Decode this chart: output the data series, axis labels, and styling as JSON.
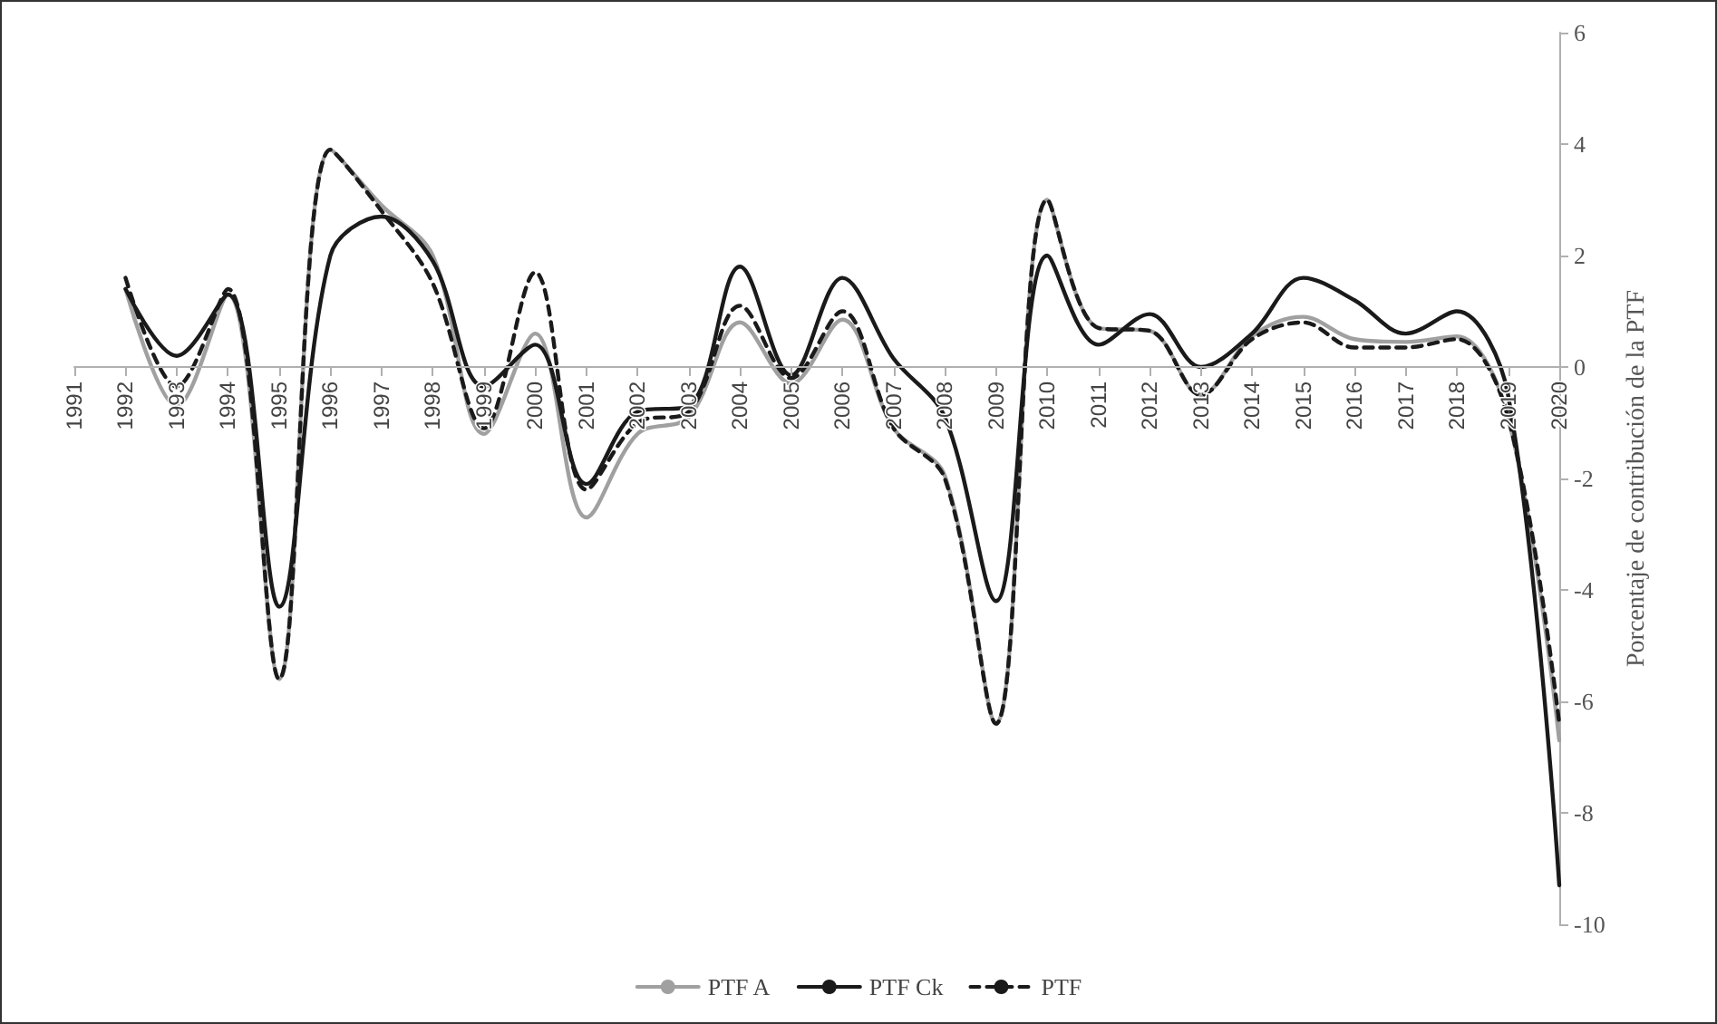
{
  "chart_data": {
    "type": "line",
    "ylabel": "Porcentaje de contribución de la PTF",
    "x": [
      1992,
      1993,
      1994,
      1995,
      1996,
      1997,
      1998,
      1999,
      2000,
      2001,
      2002,
      2003,
      2004,
      2005,
      2006,
      2007,
      2008,
      2009,
      2010,
      2011,
      2012,
      2013,
      2014,
      2015,
      2016,
      2017,
      2018,
      2019,
      2020
    ],
    "series": [
      {
        "name": "PTF A",
        "color": "#a0a0a0",
        "line_style": "solid",
        "values": [
          1.4,
          -0.7,
          1.3,
          -5.6,
          3.9,
          2.9,
          2.0,
          -1.2,
          0.6,
          -2.7,
          -1.2,
          -0.9,
          0.8,
          -0.3,
          0.85,
          -1.1,
          -1.95,
          -6.4,
          3.0,
          0.7,
          0.65,
          -0.5,
          0.55,
          0.9,
          0.5,
          0.45,
          0.55,
          -0.9,
          -6.7
        ]
      },
      {
        "name": "PTF Ck",
        "color": "#1a1a1a",
        "line_style": "solid",
        "values": [
          1.4,
          0.2,
          1.3,
          -4.3,
          2.0,
          2.7,
          1.9,
          -0.35,
          0.4,
          -2.1,
          -0.8,
          -0.7,
          1.8,
          -0.15,
          1.6,
          0.15,
          -0.9,
          -4.2,
          2.0,
          0.4,
          0.95,
          0.0,
          0.6,
          1.6,
          1.2,
          0.6,
          1.0,
          -0.5,
          -9.3
        ]
      },
      {
        "name": "PTF",
        "color": "#1a1a1a",
        "line_style": "dashed",
        "values": [
          1.6,
          -0.35,
          1.4,
          -5.6,
          3.9,
          2.8,
          1.5,
          -1.1,
          1.7,
          -2.2,
          -1.0,
          -0.8,
          1.1,
          -0.2,
          1.0,
          -1.1,
          -2.0,
          -6.4,
          3.0,
          0.7,
          0.65,
          -0.5,
          0.5,
          0.8,
          0.35,
          0.35,
          0.5,
          -0.9,
          -6.4
        ]
      }
    ],
    "xlim": [
      1991,
      2020
    ],
    "xticks": [
      1991,
      1992,
      1993,
      1994,
      1995,
      1996,
      1997,
      1998,
      1999,
      2000,
      2001,
      2002,
      2003,
      2004,
      2005,
      2006,
      2007,
      2008,
      2009,
      2010,
      2011,
      2012,
      2013,
      2014,
      2015,
      2016,
      2017,
      2018,
      2019,
      2020
    ],
    "ylim": [
      -10,
      6
    ],
    "yticks": [
      -10,
      -8,
      -6,
      -4,
      -2,
      0,
      2,
      4,
      6
    ],
    "grid": false,
    "legend": "bottom",
    "marker": "none"
  }
}
